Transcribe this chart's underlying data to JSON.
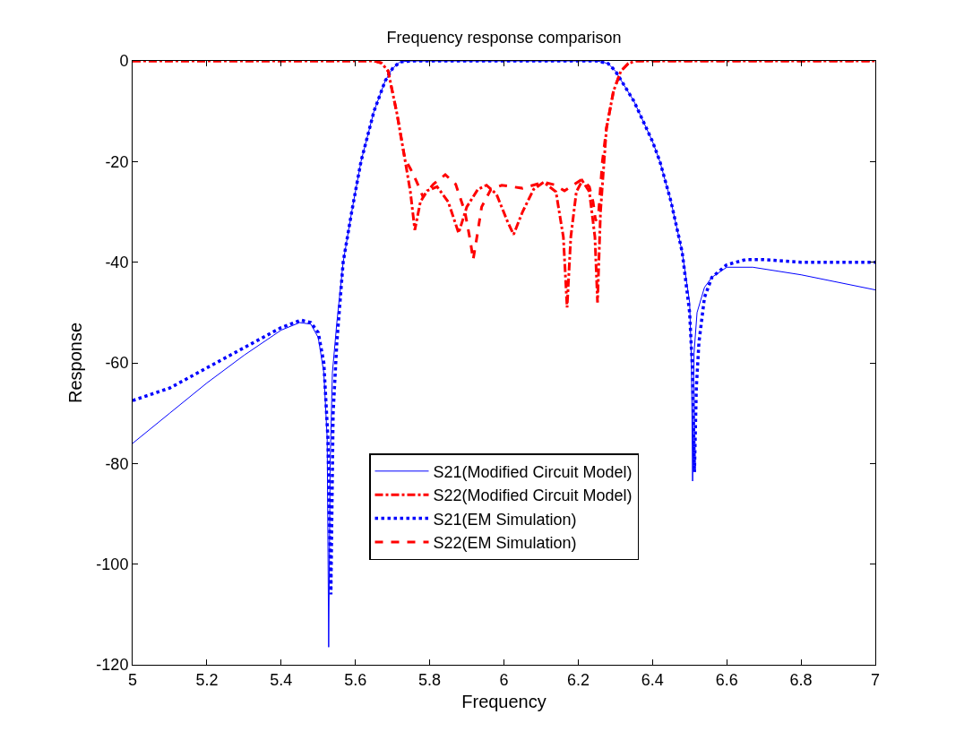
{
  "chart_data": {
    "type": "line",
    "title": "Frequency response comparison",
    "xlabel": "Frequency",
    "ylabel": "Response",
    "xlim": [
      5,
      7
    ],
    "xticks": [
      5,
      5.2,
      5.4,
      5.6,
      5.8,
      6,
      6.2,
      6.4,
      6.6,
      6.8,
      7
    ],
    "ylim": [
      -120,
      0
    ],
    "yticks": [
      -120,
      -100,
      -80,
      -60,
      -40,
      -20,
      0
    ],
    "legend": "bottom",
    "marker": "none",
    "series": [
      {
        "name": "S21(Modified Circuit Model)",
        "color": "#0000ff",
        "line_style": "solid",
        "x": [
          5,
          5.1,
          5.2,
          5.3,
          5.4,
          5.45,
          5.48,
          5.5,
          5.515,
          5.524,
          5.528,
          5.532,
          5.538,
          5.55,
          5.567,
          5.59,
          5.615,
          5.65,
          5.68,
          5.7,
          5.72,
          5.75,
          6.0,
          6.25,
          6.28,
          6.3,
          6.35,
          6.4,
          6.42,
          6.45,
          6.48,
          6.5,
          6.505,
          6.508,
          6.512,
          6.52,
          6.54,
          6.56,
          6.6,
          6.67,
          6.8,
          7
        ],
        "values": [
          -76,
          -70,
          -64,
          -58.5,
          -53.5,
          -52,
          -52.3,
          -55,
          -62,
          -75,
          -116.5,
          -80,
          -62,
          -52,
          -40,
          -30,
          -20,
          -10,
          -4,
          -1.5,
          -0.2,
          0,
          0,
          0,
          -0.5,
          -2,
          -8,
          -16,
          -20,
          -28,
          -38,
          -48,
          -60,
          -83.5,
          -58,
          -50,
          -45,
          -43,
          -41,
          -41,
          -42.5,
          -45.5
        ]
      },
      {
        "name": "S22(Modified Circuit Model)",
        "color": "#ff0000",
        "line_style": "dashdot",
        "x": [
          5,
          5.4,
          5.65,
          5.67,
          5.688,
          5.712,
          5.733,
          5.748,
          5.76,
          5.775,
          5.793,
          5.82,
          5.85,
          5.878,
          5.9,
          5.93,
          5.953,
          5.98,
          6.01,
          6.026,
          6.05,
          6.08,
          6.107,
          6.14,
          6.16,
          6.17,
          6.18,
          6.195,
          6.211,
          6.23,
          6.245,
          6.252,
          6.26,
          6.276,
          6.295,
          6.315,
          6.335,
          6.356,
          6.6,
          7
        ],
        "values": [
          0,
          0,
          0,
          -0.4,
          -2,
          -10.5,
          -19.4,
          -26,
          -33.6,
          -28,
          -25.8,
          -25,
          -28,
          -34.2,
          -29,
          -25.5,
          -24.7,
          -26.5,
          -32,
          -34.5,
          -30,
          -25.5,
          -24.1,
          -26,
          -35,
          -49,
          -35,
          -26,
          -23.8,
          -26,
          -35,
          -48,
          -30,
          -13.4,
          -6,
          -2,
          -0.5,
          0,
          0,
          0
        ]
      },
      {
        "name": "S21(EM Simulation)",
        "color": "#0000ff",
        "line_style": "dotted",
        "x": [
          5,
          5.1,
          5.2,
          5.3,
          5.4,
          5.453,
          5.48,
          5.5,
          5.515,
          5.526,
          5.534,
          5.54,
          5.55,
          5.567,
          5.59,
          5.615,
          5.65,
          5.68,
          5.7,
          5.72,
          5.75,
          6.0,
          6.25,
          6.28,
          6.3,
          6.35,
          6.4,
          6.42,
          6.45,
          6.48,
          6.5,
          6.508,
          6.513,
          6.518,
          6.525,
          6.54,
          6.56,
          6.6,
          6.65,
          6.7,
          6.8,
          7
        ],
        "values": [
          -67.5,
          -65,
          -61,
          -57,
          -53,
          -51.5,
          -52,
          -54,
          -60,
          -75,
          -106,
          -70,
          -56,
          -40,
          -30,
          -20,
          -10,
          -4,
          -1.5,
          -0.2,
          0,
          0,
          0,
          -0.5,
          -2,
          -8,
          -16,
          -20,
          -28,
          -38,
          -50,
          -62,
          -81.7,
          -65,
          -56,
          -47,
          -43,
          -40.5,
          -39.5,
          -39.5,
          -40,
          -40
        ]
      },
      {
        "name": "S22(EM Simulation)",
        "color": "#ff0000",
        "line_style": "dashed",
        "x": [
          5,
          5.4,
          5.65,
          5.67,
          5.688,
          5.712,
          5.733,
          5.748,
          5.765,
          5.782,
          5.81,
          5.842,
          5.87,
          5.895,
          5.91,
          5.917,
          5.925,
          5.94,
          5.965,
          5.994,
          6.05,
          6.107,
          6.135,
          6.163,
          6.19,
          6.211,
          6.23,
          6.24,
          6.247,
          6.255,
          6.265,
          6.276,
          6.295,
          6.315,
          6.335,
          6.356,
          6.6,
          7
        ],
        "values": [
          0,
          0,
          0,
          -0.4,
          -2,
          -10.5,
          -19.4,
          -21.4,
          -24,
          -27,
          -24.5,
          -22.6,
          -24.5,
          -30,
          -36,
          -39.5,
          -36,
          -29,
          -25.5,
          -24.7,
          -25.3,
          -24.1,
          -24.6,
          -25.8,
          -24.5,
          -23.5,
          -25,
          -28,
          -31.8,
          -30,
          -20,
          -13.4,
          -6,
          -2,
          -0.5,
          0,
          0,
          0
        ]
      }
    ]
  }
}
